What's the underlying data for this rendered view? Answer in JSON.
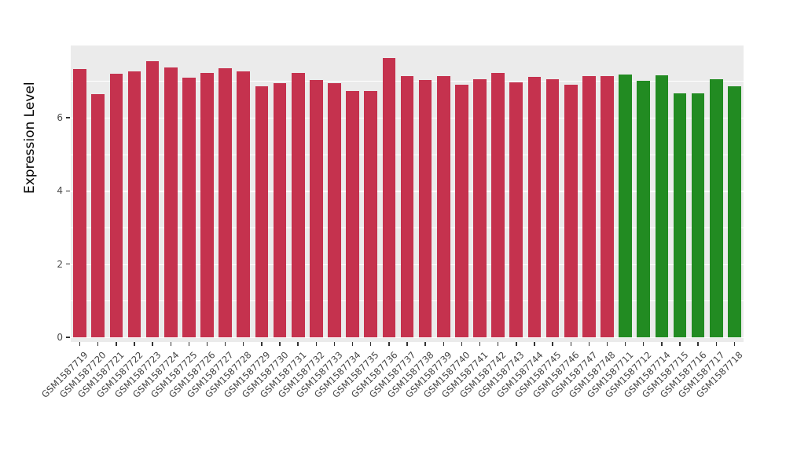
{
  "chart_data": {
    "type": "bar",
    "title": "",
    "xlabel": "",
    "ylabel": "Expression Level",
    "ylim": [
      0,
      7.85
    ],
    "yticks": [
      0,
      2,
      4,
      6
    ],
    "yticks_minor": [
      1,
      3,
      5,
      7
    ],
    "grid": true,
    "legend_position": "none",
    "categories": [
      "GSM1587719",
      "GSM1587720",
      "GSM1587721",
      "GSM1587722",
      "GSM1587723",
      "GSM1587724",
      "GSM1587725",
      "GSM1587726",
      "GSM1587727",
      "GSM1587728",
      "GSM1587729",
      "GSM1587730",
      "GSM1587731",
      "GSM1587732",
      "GSM1587733",
      "GSM1587734",
      "GSM1587735",
      "GSM1587736",
      "GSM1587737",
      "GSM1587738",
      "GSM1587739",
      "GSM1587740",
      "GSM1587741",
      "GSM1587742",
      "GSM1587743",
      "GSM1587744",
      "GSM1587745",
      "GSM1587746",
      "GSM1587747",
      "GSM1587748",
      "GSM1587711",
      "GSM1587712",
      "GSM1587714",
      "GSM1587715",
      "GSM1587716",
      "GSM1587717",
      "GSM1587718"
    ],
    "values": [
      7.32,
      6.64,
      7.21,
      7.26,
      7.55,
      7.38,
      7.09,
      7.23,
      7.34,
      7.26,
      6.85,
      6.94,
      7.23,
      7.02,
      6.94,
      6.72,
      6.72,
      7.62,
      7.13,
      7.02,
      7.13,
      6.91,
      7.04,
      7.23,
      6.96,
      7.11,
      7.04,
      6.91,
      7.13,
      7.13,
      7.17,
      7.0,
      7.15,
      6.66,
      6.66,
      7.04,
      6.85
    ],
    "groups": [
      "group1",
      "group1",
      "group1",
      "group1",
      "group1",
      "group1",
      "group1",
      "group1",
      "group1",
      "group1",
      "group1",
      "group1",
      "group1",
      "group1",
      "group1",
      "group1",
      "group1",
      "group1",
      "group1",
      "group1",
      "group1",
      "group1",
      "group1",
      "group1",
      "group1",
      "group1",
      "group1",
      "group1",
      "group1",
      "group1",
      "group2",
      "group2",
      "group2",
      "group2",
      "group2",
      "group2",
      "group2"
    ],
    "group_colors": {
      "group1": "#C5324E",
      "group2": "#228B22"
    },
    "panel_background": "#EBEBEB",
    "grid_color": "#FFFFFF"
  }
}
